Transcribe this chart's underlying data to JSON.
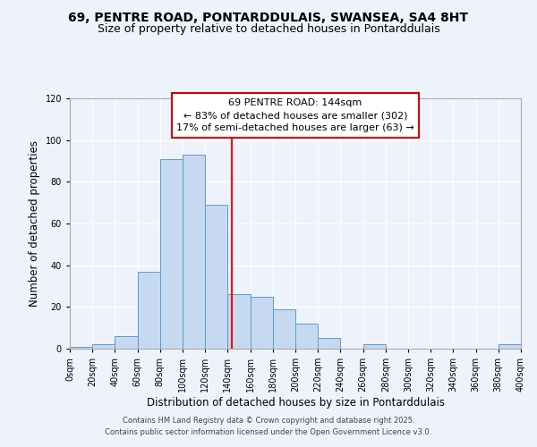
{
  "title1": "69, PENTRE ROAD, PONTARDDULAIS, SWANSEA, SA4 8HT",
  "title2": "Size of property relative to detached houses in Pontarddulais",
  "xlabel": "Distribution of detached houses by size in Pontarddulais",
  "ylabel": "Number of detached properties",
  "bin_edges": [
    0,
    20,
    40,
    60,
    80,
    100,
    120,
    140,
    160,
    180,
    200,
    220,
    240,
    260,
    280,
    300,
    320,
    340,
    360,
    380,
    400
  ],
  "counts": [
    1,
    2,
    6,
    37,
    91,
    93,
    69,
    26,
    25,
    19,
    12,
    5,
    0,
    2,
    0,
    0,
    0,
    0,
    0,
    2
  ],
  "bar_color": "#c6d9f0",
  "bar_edge_color": "#5b9bd5",
  "vline_x": 144,
  "vline_color": "#ff0000",
  "annotation_title": "69 PENTRE ROAD: 144sqm",
  "annotation_line1": "← 83% of detached houses are smaller (302)",
  "annotation_line2": "17% of semi-detached houses are larger (63) →",
  "annotation_box_color": "#ffffff",
  "annotation_box_edge": "#cc0000",
  "ylim": [
    0,
    120
  ],
  "xlim": [
    0,
    400
  ],
  "footer1": "Contains HM Land Registry data © Crown copyright and database right 2025.",
  "footer2": "Contains public sector information licensed under the Open Government Licence v3.0.",
  "bg_color": "#eef2fb",
  "title1_fontsize": 10,
  "title2_fontsize": 9,
  "xlabel_fontsize": 8.5,
  "ylabel_fontsize": 8.5,
  "annotation_fontsize": 8,
  "tick_fontsize": 7
}
